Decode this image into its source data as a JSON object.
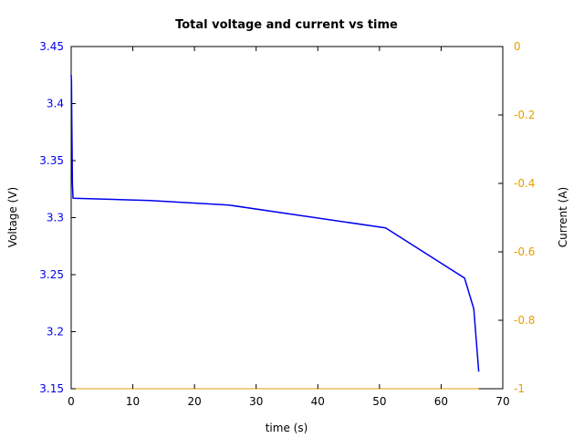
{
  "chart_data": {
    "type": "line",
    "title": "Total voltage and current vs time",
    "xlabel": "time (s)",
    "ylabel_left": "Voltage (V)",
    "ylabel_right": "Current (A)",
    "xlim": [
      0,
      70
    ],
    "ylim_left": [
      3.15,
      3.45
    ],
    "ylim_right": [
      -1,
      0
    ],
    "x_ticks": [
      "0",
      "10",
      "20",
      "30",
      "40",
      "50",
      "60",
      "70"
    ],
    "y_left_ticks": [
      "3.15",
      "3.2",
      "3.25",
      "3.3",
      "3.35",
      "3.4",
      "3.45"
    ],
    "y_right_ticks": [
      "-1",
      "-0.8",
      "-0.6",
      "-0.4",
      "-0.2",
      "0"
    ],
    "grid": false,
    "colors": {
      "voltage_series": "#0000ee",
      "left_axis_ticks": "#0000ee",
      "right_axis_ticks": "#e69f00",
      "current_series": "#e69f00"
    },
    "series": [
      {
        "axis": "left",
        "color": "#0000ee",
        "x": [
          0.0,
          0.05,
          0.1,
          0.2,
          0.3,
          12.8,
          25.6,
          51.0,
          63.8,
          65.3,
          66.1
        ],
        "y": [
          3.425,
          3.42,
          3.385,
          3.33,
          3.317,
          3.315,
          3.311,
          3.291,
          3.247,
          3.22,
          3.165
        ]
      },
      {
        "axis": "right",
        "color": "#e69f00",
        "x": [
          0.0,
          66.1
        ],
        "y": [
          -1.0,
          -1.0
        ]
      }
    ]
  }
}
